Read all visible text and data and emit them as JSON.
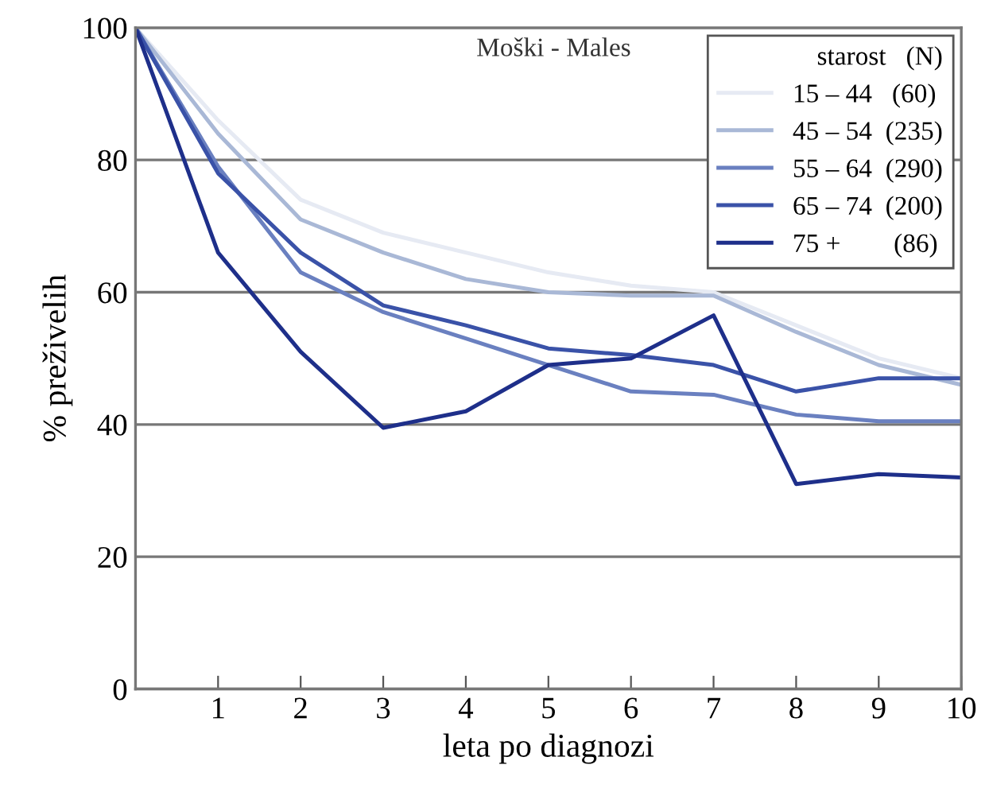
{
  "chart_data": {
    "type": "line",
    "title": "Moški - Males",
    "xlabel": "leta po diagnozi",
    "ylabel": "% preživelih",
    "legend_title": "starost   (N)",
    "x": [
      0,
      1,
      2,
      3,
      4,
      5,
      6,
      7,
      8,
      9,
      10
    ],
    "series": [
      {
        "name": "15 – 44   (60)",
        "color": "#e6eaf3",
        "values": [
          100,
          86,
          74,
          69,
          66,
          63,
          61,
          60,
          55,
          50,
          47
        ]
      },
      {
        "name": "45 – 54  (235)",
        "color": "#a9b8d6",
        "values": [
          100,
          84,
          71,
          66,
          62,
          60,
          59.5,
          59.5,
          54,
          49,
          46
        ]
      },
      {
        "name": "55 – 64  (290)",
        "color": "#6a80c0",
        "values": [
          100,
          79,
          63,
          57,
          53,
          49,
          45,
          44.5,
          41.5,
          40.5,
          40.5
        ]
      },
      {
        "name": "65 – 74  (200)",
        "color": "#3a52a8",
        "values": [
          100,
          78,
          66,
          58,
          55,
          51.5,
          50.5,
          49,
          45,
          47,
          47
        ]
      },
      {
        "name": "75 +        (86)",
        "color": "#1e2f8a",
        "values": [
          100,
          66,
          51,
          39.5,
          42,
          49,
          50,
          56.5,
          31,
          32.5,
          32
        ]
      }
    ],
    "xlim": [
      0,
      10
    ],
    "xticks": [
      1,
      2,
      3,
      4,
      5,
      6,
      7,
      8,
      9,
      10
    ],
    "ylim": [
      0,
      100
    ],
    "yticks": [
      0,
      20,
      40,
      60,
      80,
      100
    ],
    "grid": "y",
    "legend": "top right",
    "marker": "none",
    "line_style": "solid"
  }
}
